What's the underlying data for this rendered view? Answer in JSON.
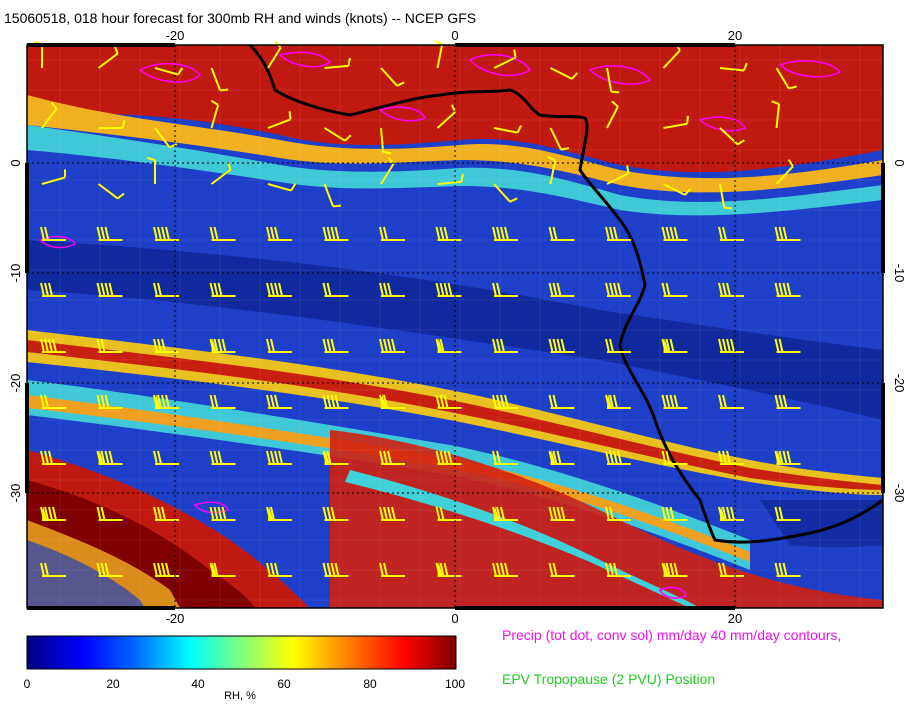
{
  "title": "15060518, 018 hour forecast for 300mb RH and winds (knots) -- NCEP GFS",
  "map": {
    "lon_labels": [
      "-20",
      "0",
      "20"
    ],
    "lat_labels": [
      "0",
      "-10",
      "-20",
      "-30"
    ],
    "lon_range": [
      -30,
      30
    ],
    "lat_range": [
      -40,
      10
    ]
  },
  "colorbar": {
    "title": "RH, %",
    "tick_labels": [
      "0",
      "20",
      "40",
      "60",
      "80",
      "100"
    ],
    "range": [
      0,
      100
    ]
  },
  "notes": {
    "precip": "Precip (tot dot, conv sol) mm/day 40 mm/day contours,",
    "epv": "EPV Tropopause (2 PVU) Position"
  },
  "colors": {
    "precip_text": "#ee11ee",
    "epv_text": "#22cc22",
    "wind_barbs": "#ffff00",
    "coastline": "#000000",
    "precip_contours": "#ff00ff"
  }
}
